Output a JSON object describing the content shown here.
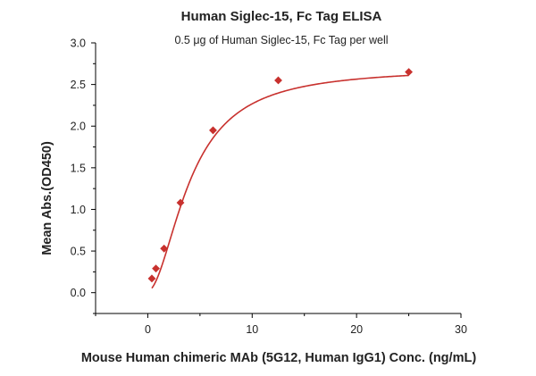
{
  "chart_data": {
    "type": "scatter",
    "title": "Human Siglec-15, Fc Tag ELISA",
    "subtitle": "0.5 μg of Human Siglec-15, Fc Tag per well",
    "xlabel": "Mouse Human chimeric MAb (5G12, Human IgG1) Conc. (ng/mL)",
    "ylabel": "Mean Abs.(OD450)",
    "xlim": [
      -5,
      30
    ],
    "ylim": [
      -0.25,
      3.0
    ],
    "x_ticks": [
      0,
      10,
      20,
      30
    ],
    "y_ticks": [
      0.0,
      0.5,
      1.0,
      1.5,
      2.0,
      2.5,
      3.0
    ],
    "x_tick_labels": [
      "0",
      "10",
      "20",
      "30"
    ],
    "y_tick_labels": [
      "0.0",
      "0.5",
      "1.0",
      "1.5",
      "2.0",
      "2.5",
      "3.0"
    ],
    "grid": false,
    "series": [
      {
        "points": [
          {
            "x": 0.39,
            "y": 0.17
          },
          {
            "x": 0.78,
            "y": 0.29
          },
          {
            "x": 1.56,
            "y": 0.53
          },
          {
            "x": 3.13,
            "y": 1.08
          },
          {
            "x": 6.25,
            "y": 1.95
          },
          {
            "x": 12.5,
            "y": 2.55
          },
          {
            "x": 25,
            "y": 2.65
          }
        ],
        "color": "#c8312e",
        "marker": "diamond",
        "fit": "sigmoidal"
      }
    ]
  }
}
